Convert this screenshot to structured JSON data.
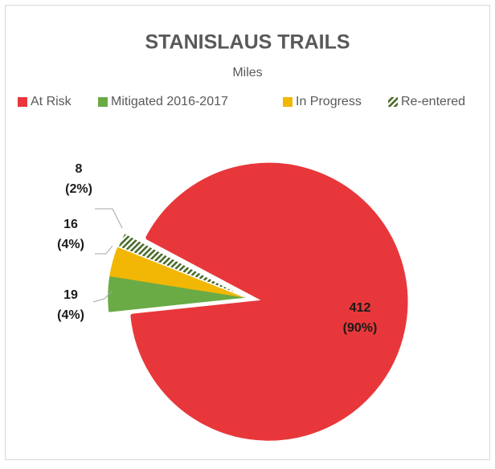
{
  "chart_data": {
    "type": "pie",
    "title": "STANISLAUS TRAILS",
    "subtitle": "Miles",
    "categories": [
      "At Risk",
      "Mitigated 2016-2017",
      "In Progress",
      "Re-entered"
    ],
    "values": [
      412,
      19,
      16,
      8
    ],
    "value_labels": [
      "412 (90%)",
      "19 (4%)",
      "16 (4%)",
      "8 (2%)"
    ],
    "colors": [
      "#e8373a",
      "#6aab45",
      "#f2b705",
      "hatch"
    ],
    "legend": "top"
  }
}
